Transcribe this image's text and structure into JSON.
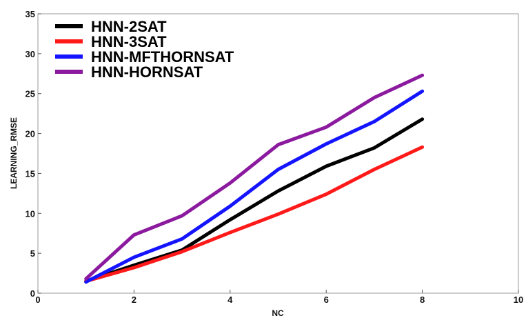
{
  "chart_data": {
    "type": "line",
    "xlabel": "NC",
    "ylabel": "LEARNING_RMSE",
    "xlim": [
      0,
      10
    ],
    "ylim": [
      0,
      35
    ],
    "xticks": [
      "0",
      "2",
      "4",
      "6",
      "8",
      "10"
    ],
    "yticks": [
      "0",
      "5",
      "10",
      "15",
      "20",
      "25",
      "30",
      "35"
    ],
    "grid": false,
    "legend_position": "top-left",
    "x": [
      1,
      2,
      3,
      4,
      5,
      6,
      7,
      8
    ],
    "series": [
      {
        "name": "HNN-2SAT",
        "color": "#000000",
        "values": [
          1.5,
          3.5,
          5.4,
          9.2,
          12.8,
          15.9,
          18.2,
          21.8
        ]
      },
      {
        "name": "HNN-3SAT",
        "color": "#ff1a1a",
        "values": [
          1.5,
          3.2,
          5.2,
          7.6,
          9.9,
          12.4,
          15.5,
          18.3
        ]
      },
      {
        "name": "HNN-MFTHORNSAT",
        "color": "#1414ff",
        "values": [
          1.4,
          4.5,
          6.8,
          10.9,
          15.5,
          18.7,
          21.5,
          25.3
        ]
      },
      {
        "name": "HNN-HORNSAT",
        "color": "#8b1a9e",
        "values": [
          1.8,
          7.3,
          9.7,
          13.8,
          18.6,
          20.8,
          24.5,
          27.3
        ]
      }
    ]
  }
}
